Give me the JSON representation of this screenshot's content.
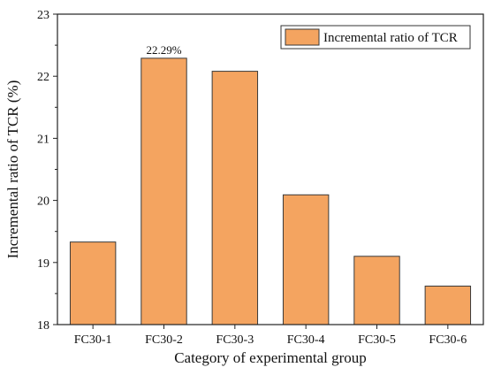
{
  "chart_data": {
    "type": "bar",
    "categories": [
      "FC30-1",
      "FC30-2",
      "FC30-3",
      "FC30-4",
      "FC30-5",
      "FC30-6"
    ],
    "series": [
      {
        "name": "Incremental ratio of TCR",
        "values": [
          19.33,
          22.29,
          22.08,
          20.09,
          19.1,
          18.62
        ],
        "color": "#F4A460"
      }
    ],
    "data_labels": [
      {
        "category": "FC30-2",
        "text": "22.29%"
      }
    ],
    "xlabel": "Category of experimental group",
    "ylabel": "Incremental ratio of TCR (%)",
    "ylim": [
      18,
      23
    ],
    "yticks": [
      "18",
      "19",
      "20",
      "21",
      "22",
      "23"
    ],
    "legend_position": "top-right",
    "grid": false,
    "bar_edge_color": "#3a3a3a"
  }
}
